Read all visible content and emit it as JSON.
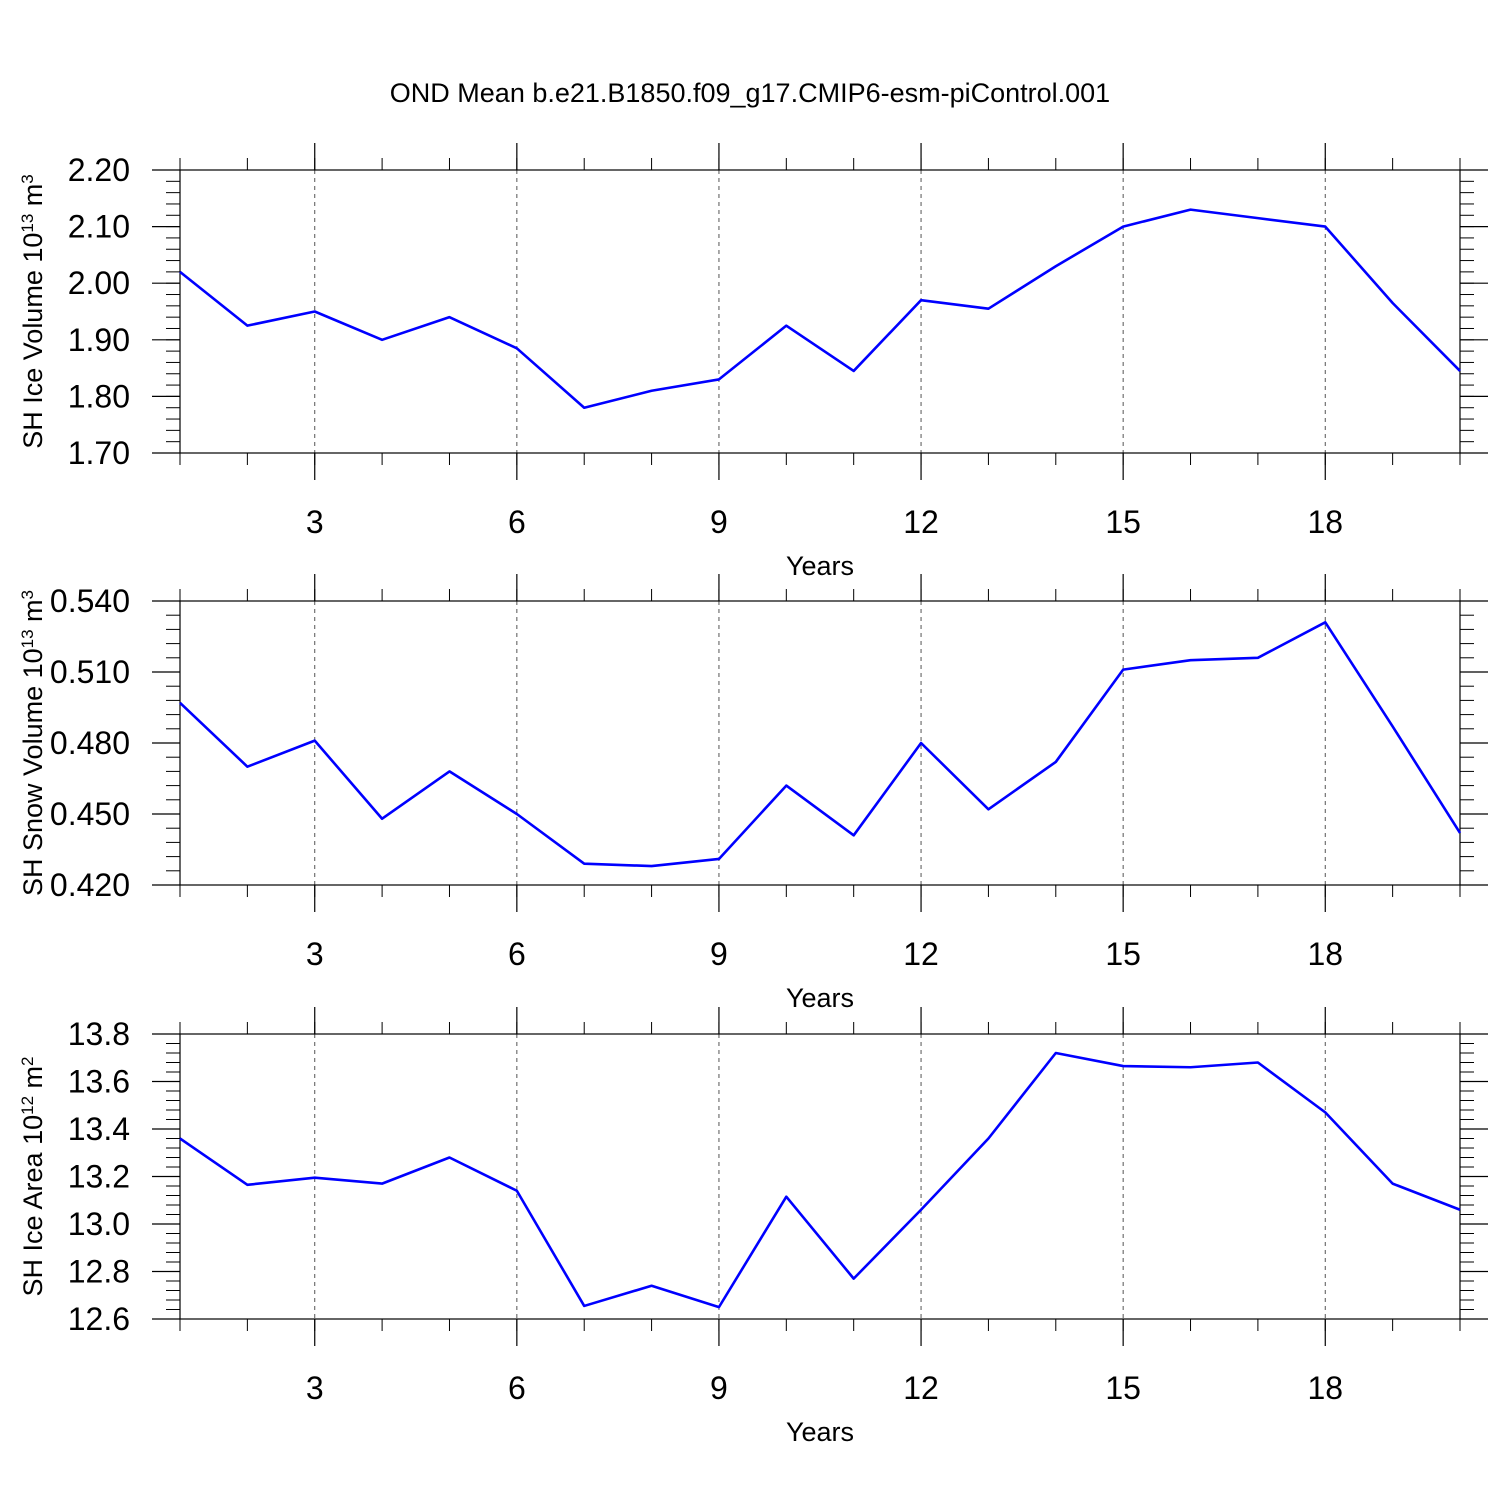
{
  "title": "OND Mean b.e21.B1850.f09_g17.CMIP6-esm-piControl.001",
  "chart_data": [
    {
      "type": "line",
      "ylabel": "SH Ice Volume",
      "ylabel_unit": "10",
      "ylabel_exp": "13",
      "ylabel_tail": " m",
      "ylabel_tail_exp": "3",
      "xlabel": "Years",
      "x": [
        1,
        2,
        3,
        4,
        5,
        6,
        7,
        8,
        9,
        10,
        11,
        12,
        13,
        14,
        15,
        16,
        17,
        18,
        19,
        20
      ],
      "series": [
        {
          "values": [
            2.02,
            1.925,
            1.95,
            1.9,
            1.94,
            1.885,
            1.78,
            1.81,
            1.83,
            1.925,
            1.845,
            1.97,
            1.955,
            2.03,
            2.1,
            2.13,
            2.115,
            2.1,
            1.965,
            1.845
          ],
          "color": "#0000ff"
        }
      ],
      "xlim": [
        1,
        20
      ],
      "ylim": [
        1.7,
        2.2
      ],
      "xticks": [
        "3",
        "6",
        "9",
        "12",
        "15",
        "18"
      ],
      "yticks": [
        "1.70",
        "1.80",
        "1.90",
        "2.00",
        "2.10",
        "2.20"
      ],
      "grid": "vertical dashed"
    },
    {
      "type": "line",
      "ylabel": "SH Snow Volume",
      "ylabel_unit": "10",
      "ylabel_exp": "13",
      "ylabel_tail": " m",
      "ylabel_tail_exp": "3",
      "xlabel": "Years",
      "x": [
        1,
        2,
        3,
        4,
        5,
        6,
        7,
        8,
        9,
        10,
        11,
        12,
        13,
        14,
        15,
        16,
        17,
        18,
        19,
        20
      ],
      "series": [
        {
          "values": [
            0.497,
            0.47,
            0.481,
            0.448,
            0.468,
            0.45,
            0.429,
            0.428,
            0.431,
            0.462,
            0.441,
            0.48,
            0.452,
            0.472,
            0.511,
            0.515,
            0.516,
            0.531,
            0.487,
            0.442
          ],
          "color": "#0000ff"
        }
      ],
      "xlim": [
        1,
        20
      ],
      "ylim": [
        0.42,
        0.54
      ],
      "xticks": [
        "3",
        "6",
        "9",
        "12",
        "15",
        "18"
      ],
      "yticks": [
        "0.420",
        "0.450",
        "0.480",
        "0.510",
        "0.540"
      ],
      "grid": "vertical dashed"
    },
    {
      "type": "line",
      "ylabel": "SH Ice Area",
      "ylabel_unit": "10",
      "ylabel_exp": "12",
      "ylabel_tail": " m",
      "ylabel_tail_exp": "2",
      "xlabel": "Years",
      "x": [
        1,
        2,
        3,
        4,
        5,
        6,
        7,
        8,
        9,
        10,
        11,
        12,
        13,
        14,
        15,
        16,
        17,
        18,
        19,
        20
      ],
      "series": [
        {
          "values": [
            13.36,
            13.165,
            13.195,
            13.17,
            13.28,
            13.14,
            12.655,
            12.74,
            12.65,
            13.115,
            12.77,
            13.06,
            13.36,
            13.72,
            13.665,
            13.66,
            13.68,
            13.47,
            13.17,
            13.06
          ],
          "color": "#0000ff"
        }
      ],
      "xlim": [
        1,
        20
      ],
      "ylim": [
        12.6,
        13.8
      ],
      "xticks": [
        "3",
        "6",
        "9",
        "12",
        "15",
        "18"
      ],
      "yticks": [
        "12.6",
        "12.8",
        "13.0",
        "13.2",
        "13.4",
        "13.6",
        "13.8"
      ],
      "grid": "vertical dashed"
    }
  ]
}
